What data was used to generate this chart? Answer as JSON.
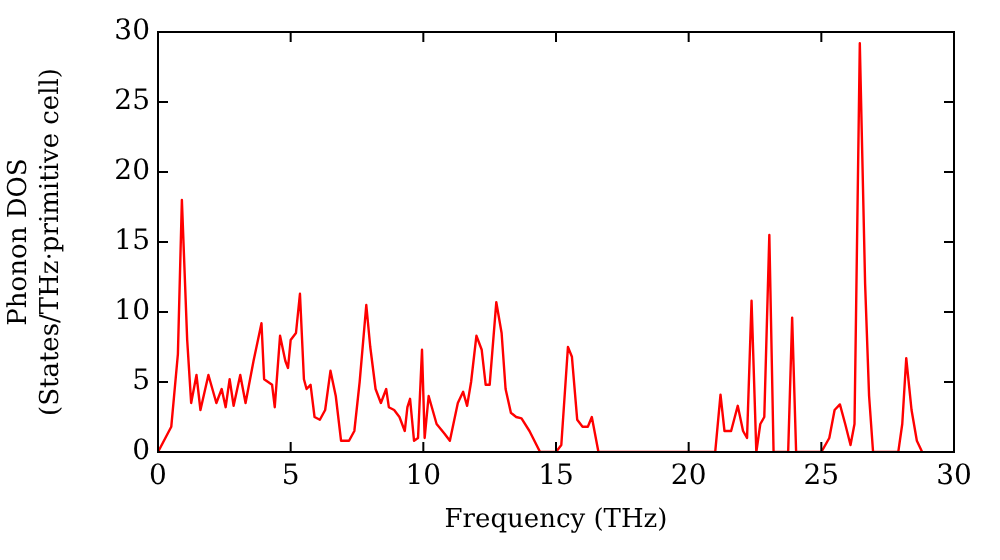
{
  "chart_data": {
    "type": "line",
    "xlabel": "Frequency (THz)",
    "ylabel": "Phonon DOS\n(States/THz·primitive cell)",
    "xlim": [
      0,
      30
    ],
    "xticks": [
      0,
      5,
      10,
      15,
      20,
      25,
      30
    ],
    "ylim": [
      0,
      30
    ],
    "yticks": [
      0,
      5,
      10,
      15,
      20,
      25,
      30
    ],
    "grid": false,
    "legend": false,
    "marker": "none",
    "line_style": "solid",
    "series": [
      {
        "color": "#ff0000",
        "x": [
          0,
          0.5,
          0.75,
          0.9,
          1.1,
          1.25,
          1.45,
          1.6,
          1.9,
          2.2,
          2.4,
          2.55,
          2.7,
          2.85,
          3.1,
          3.3,
          3.6,
          3.9,
          4.0,
          4.3,
          4.4,
          4.6,
          4.8,
          4.9,
          5.0,
          5.2,
          5.35,
          5.5,
          5.6,
          5.75,
          5.9,
          6.1,
          6.3,
          6.5,
          6.7,
          6.9,
          7.2,
          7.4,
          7.6,
          7.85,
          8.0,
          8.2,
          8.4,
          8.6,
          8.7,
          8.9,
          9.1,
          9.3,
          9.4,
          9.5,
          9.65,
          9.8,
          9.95,
          10.05,
          10.2,
          10.5,
          10.8,
          11.0,
          11.3,
          11.5,
          11.65,
          11.8,
          12.0,
          12.2,
          12.35,
          12.5,
          12.75,
          12.95,
          13.1,
          13.3,
          13.5,
          13.7,
          14.0,
          14.4,
          15.0,
          15.2,
          15.45,
          15.6,
          15.8,
          16.0,
          16.2,
          16.35,
          16.6,
          21.0,
          21.2,
          21.35,
          21.6,
          21.85,
          22.05,
          22.2,
          22.37,
          22.55,
          22.7,
          22.85,
          23.04,
          23.2,
          23.75,
          23.9,
          24.05,
          25.0,
          25.3,
          25.5,
          25.7,
          25.9,
          26.1,
          26.25,
          26.45,
          26.65,
          26.8,
          26.95,
          27.9,
          28.05,
          28.2,
          28.4,
          28.6,
          28.8
        ],
        "values": [
          0,
          1.8,
          7,
          18,
          8,
          3.5,
          5.5,
          3,
          5.5,
          3.5,
          4.5,
          3.2,
          5.2,
          3.3,
          5.5,
          3.5,
          6.5,
          9.2,
          5.2,
          4.8,
          3.2,
          8.3,
          6.5,
          6,
          8,
          8.5,
          11.3,
          5.2,
          4.5,
          4.8,
          2.5,
          2.3,
          3,
          5.8,
          4,
          0.8,
          0.8,
          1.5,
          5,
          10.5,
          7.5,
          4.5,
          3.5,
          4.5,
          3.2,
          3,
          2.5,
          1.5,
          3.2,
          3.8,
          0.8,
          1,
          7.3,
          1,
          4,
          2,
          1.3,
          0.8,
          3.5,
          4.3,
          3.3,
          5,
          8.3,
          7.3,
          4.8,
          4.8,
          10.7,
          8.5,
          4.5,
          2.8,
          2.5,
          2.4,
          1.5,
          0,
          0,
          0.5,
          7.5,
          6.8,
          2.3,
          1.8,
          1.8,
          2.5,
          0,
          0,
          4.1,
          1.5,
          1.5,
          3.3,
          1.5,
          1,
          10.8,
          0,
          2,
          2.5,
          15.5,
          0,
          0,
          9.6,
          0,
          0,
          1,
          3,
          3.4,
          2,
          0.5,
          2,
          29.2,
          12,
          4,
          0,
          0,
          2,
          6.7,
          3,
          0.8,
          0
        ]
      }
    ]
  }
}
